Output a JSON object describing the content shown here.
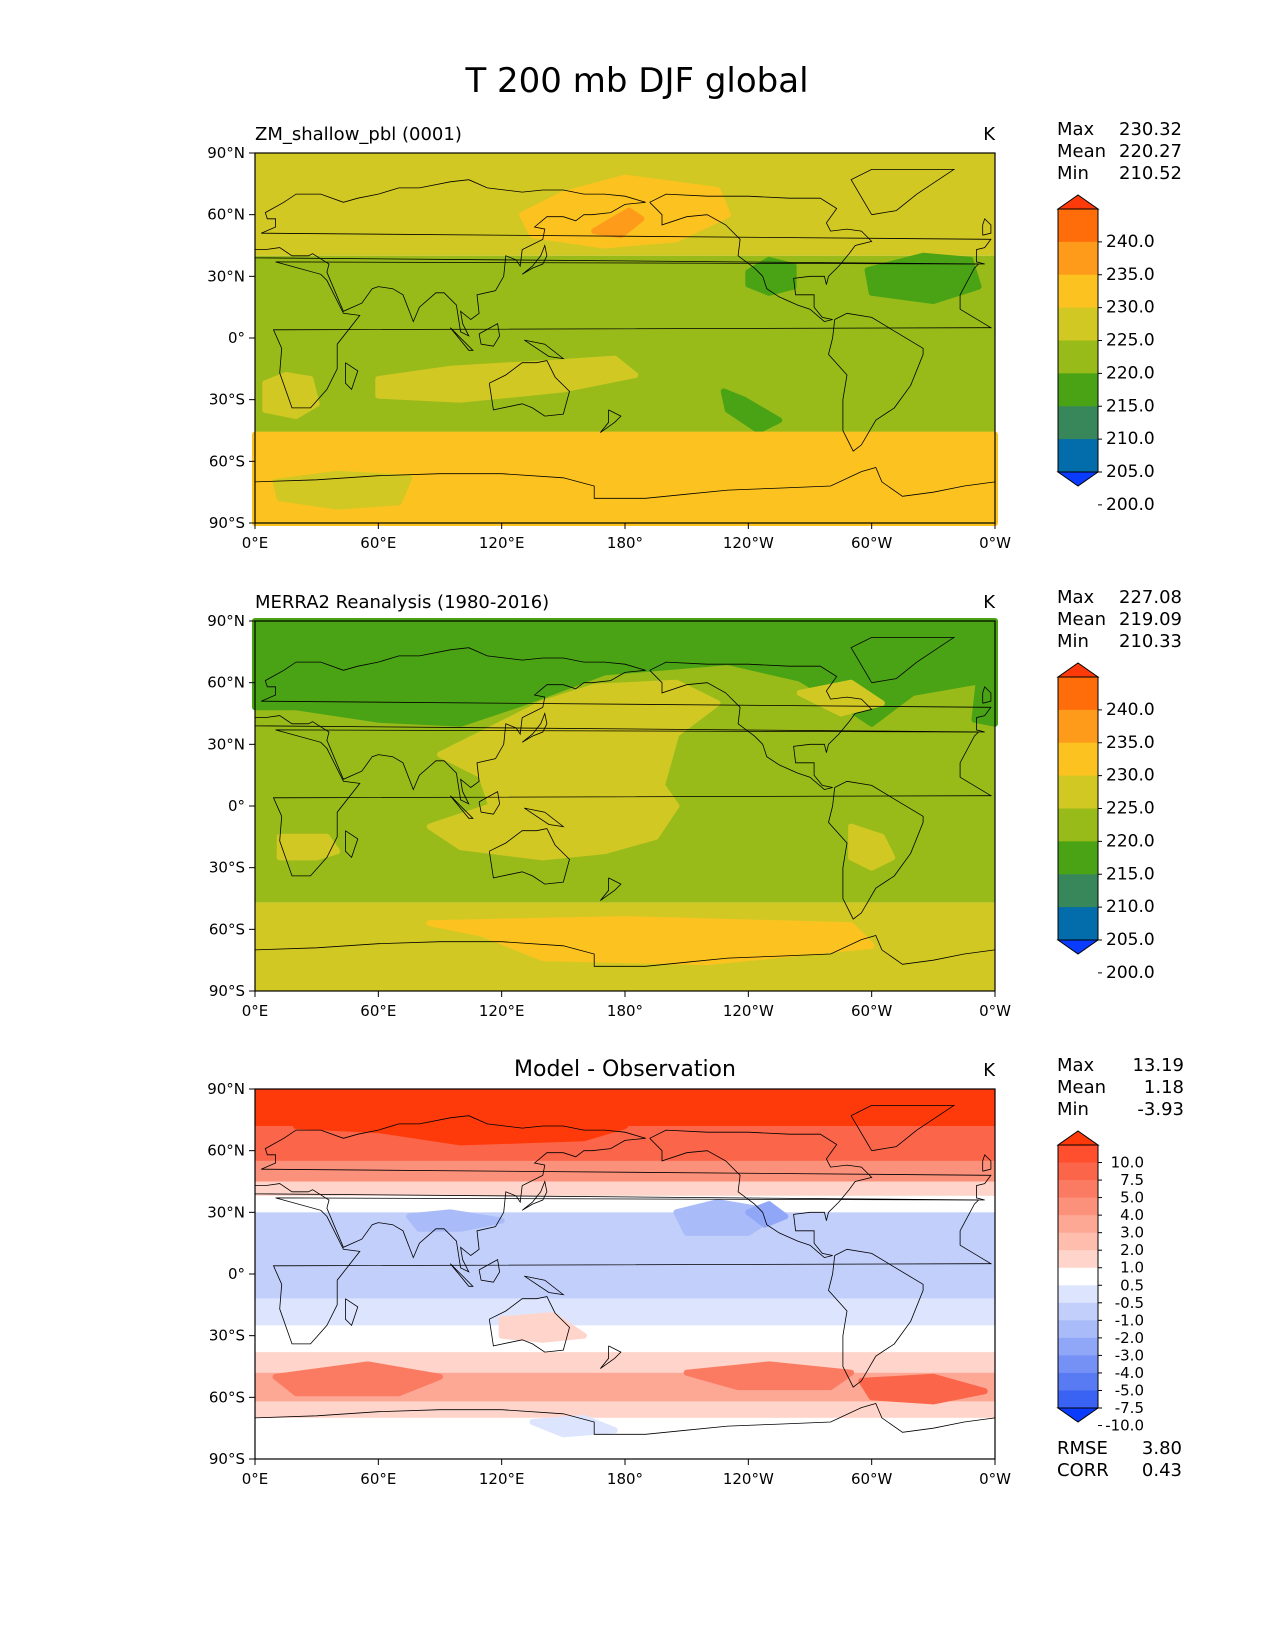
{
  "figure": {
    "title": "T 200 mb DJF global"
  },
  "chart_data": [
    {
      "type": "heatmap",
      "title": "ZM_shallow_pbl (0001)",
      "units": "K",
      "stats": [
        {
          "label": "Max",
          "value": "230.32"
        },
        {
          "label": "Mean",
          "value": "220.27"
        },
        {
          "label": "Min",
          "value": "210.52"
        }
      ],
      "xticks": [
        "0°E",
        "60°E",
        "120°E",
        "180°",
        "120°W",
        "60°W",
        "0°W"
      ],
      "yticks": [
        "90°N",
        "60°N",
        "30°N",
        "0°",
        "30°S",
        "60°S",
        "90°S"
      ],
      "xlim": [
        0,
        360
      ],
      "ylim": [
        -90,
        90
      ],
      "colorbar": {
        "labels": [
          "240.0",
          "235.0",
          "230.0",
          "225.0",
          "220.0",
          "215.0",
          "210.0",
          "205.0",
          "200.0"
        ],
        "colors": [
          "#ff3a0a",
          "#ff6d0a",
          "#ff9b1a",
          "#fcc320",
          "#d2c823",
          "#98bb1a",
          "#4aa315",
          "#37875a",
          "#036cab",
          "#0a3cff"
        ]
      },
      "regions": [
        {
          "color": "#fcc320",
          "points": [
            [
              150,
              70
            ],
            [
              180,
              78
            ],
            [
              225,
              72
            ],
            [
              230,
              60
            ],
            [
              205,
              48
            ],
            [
              170,
              45
            ],
            [
              135,
              50
            ],
            [
              130,
              60
            ]
          ]
        },
        {
          "color": "#ff9b1a",
          "points": [
            [
              165,
              52
            ],
            [
              175,
              58
            ],
            [
              182,
              62
            ],
            [
              188,
              58
            ],
            [
              178,
              50
            ]
          ]
        },
        {
          "color": "#4aa315",
          "points": [
            [
              240,
              32
            ],
            [
              250,
              38
            ],
            [
              262,
              35
            ],
            [
              262,
              25
            ],
            [
              250,
              22
            ],
            [
              240,
              26
            ]
          ]
        },
        {
          "color": "#4aa315",
          "points": [
            [
              298,
              33
            ],
            [
              325,
              40
            ],
            [
              348,
              38
            ],
            [
              352,
              25
            ],
            [
              330,
              18
            ],
            [
              300,
              22
            ]
          ]
        },
        {
          "color": "#4aa315",
          "points": [
            [
              228,
              -26
            ],
            [
              238,
              -30
            ],
            [
              255,
              -40
            ],
            [
              245,
              -45
            ],
            [
              230,
              -35
            ]
          ]
        },
        {
          "color": "#d2c823",
          "points": [
            [
              60,
              -20
            ],
            [
              95,
              -15
            ],
            [
              145,
              -12
            ],
            [
              175,
              -10
            ],
            [
              185,
              -18
            ],
            [
              150,
              -25
            ],
            [
              100,
              -30
            ],
            [
              60,
              -28
            ]
          ]
        },
        {
          "color": "#d2c823",
          "points": [
            [
              5,
              -22
            ],
            [
              15,
              -18
            ],
            [
              27,
              -20
            ],
            [
              30,
              -32
            ],
            [
              20,
              -38
            ],
            [
              5,
              -35
            ]
          ]
        },
        {
          "color": "#fcc320",
          "points": [
            [
              0,
              -47
            ],
            [
              360,
              -47
            ],
            [
              360,
              -90
            ],
            [
              0,
              -90
            ]
          ]
        },
        {
          "color": "#d2c823",
          "points": [
            [
              10,
              -70
            ],
            [
              40,
              -66
            ],
            [
              75,
              -68
            ],
            [
              70,
              -80
            ],
            [
              40,
              -82
            ],
            [
              12,
              -78
            ]
          ]
        }
      ],
      "base_bands": [
        {
          "from": 90,
          "to": 40,
          "color": "#d2c823"
        },
        {
          "from": 40,
          "to": -90,
          "color": "#98bb1a"
        }
      ]
    },
    {
      "type": "heatmap",
      "title": "MERRA2 Reanalysis (1980-2016)",
      "units": "K",
      "stats": [
        {
          "label": "Max",
          "value": "227.08"
        },
        {
          "label": "Mean",
          "value": "219.09"
        },
        {
          "label": "Min",
          "value": "210.33"
        }
      ],
      "xticks": [
        "0°E",
        "60°E",
        "120°E",
        "180°",
        "120°W",
        "60°W",
        "0°W"
      ],
      "yticks": [
        "90°N",
        "60°N",
        "30°N",
        "0°",
        "30°S",
        "60°S",
        "90°S"
      ],
      "xlim": [
        0,
        360
      ],
      "ylim": [
        -90,
        90
      ],
      "colorbar": {
        "labels": [
          "240.0",
          "235.0",
          "230.0",
          "225.0",
          "220.0",
          "215.0",
          "210.0",
          "205.0",
          "200.0"
        ],
        "colors": [
          "#ff3a0a",
          "#ff6d0a",
          "#ff9b1a",
          "#fcc320",
          "#d2c823",
          "#98bb1a",
          "#4aa315",
          "#37875a",
          "#036cab",
          "#0a3cff"
        ]
      },
      "base_bands": [
        {
          "from": 90,
          "to": -47,
          "color": "#98bb1a"
        },
        {
          "from": -47,
          "to": -90,
          "color": "#d2c823"
        }
      ],
      "regions": [
        {
          "color": "#4aa315",
          "points": [
            [
              0,
              90
            ],
            [
              360,
              90
            ],
            [
              360,
              62
            ],
            [
              320,
              55
            ],
            [
              300,
              40
            ],
            [
              285,
              50
            ],
            [
              265,
              62
            ],
            [
              230,
              70
            ],
            [
              170,
              65
            ],
            [
              130,
              50
            ],
            [
              100,
              40
            ],
            [
              60,
              42
            ],
            [
              20,
              48
            ],
            [
              0,
              48
            ]
          ]
        },
        {
          "color": "#4aa315",
          "points": [
            [
              352,
              60
            ],
            [
              360,
              62
            ],
            [
              360,
              40
            ],
            [
              350,
              42
            ]
          ]
        },
        {
          "color": "#d2c823",
          "points": [
            [
              140,
              50
            ],
            [
              165,
              58
            ],
            [
              205,
              60
            ],
            [
              225,
              50
            ],
            [
              205,
              35
            ],
            [
              198,
              10
            ],
            [
              205,
              0
            ],
            [
              195,
              -15
            ],
            [
              170,
              -22
            ],
            [
              140,
              -25
            ],
            [
              100,
              -20
            ],
            [
              85,
              -10
            ],
            [
              115,
              0
            ],
            [
              110,
              15
            ],
            [
              90,
              25
            ],
            [
              110,
              35
            ]
          ]
        },
        {
          "color": "#d2c823",
          "points": [
            [
              265,
              55
            ],
            [
              290,
              60
            ],
            [
              305,
              50
            ],
            [
              285,
              45
            ]
          ]
        },
        {
          "color": "#d2c823",
          "points": [
            [
              290,
              -10
            ],
            [
              305,
              -15
            ],
            [
              310,
              -25
            ],
            [
              300,
              -30
            ],
            [
              290,
              -25
            ]
          ]
        },
        {
          "color": "#d2c823",
          "points": [
            [
              12,
              -15
            ],
            [
              35,
              -15
            ],
            [
              40,
              -22
            ],
            [
              30,
              -25
            ],
            [
              12,
              -25
            ]
          ]
        },
        {
          "color": "#fcc320",
          "points": [
            [
              85,
              -57
            ],
            [
              180,
              -55
            ],
            [
              290,
              -58
            ],
            [
              300,
              -68
            ],
            [
              220,
              -76
            ],
            [
              140,
              -74
            ],
            [
              110,
              -62
            ]
          ]
        }
      ]
    },
    {
      "type": "heatmap",
      "title": "Model - Observation",
      "units": "K",
      "stats": [
        {
          "label": "Max",
          "value": "13.19"
        },
        {
          "label": "Mean",
          "value": "1.18"
        },
        {
          "label": "Min",
          "value": "-3.93"
        }
      ],
      "extra_stats": [
        {
          "label": "RMSE",
          "value": "3.80"
        },
        {
          "label": "CORR",
          "value": "0.43"
        }
      ],
      "xticks": [
        "0°E",
        "60°E",
        "120°E",
        "180°",
        "120°W",
        "60°W",
        "0°W"
      ],
      "yticks": [
        "90°N",
        "60°N",
        "30°N",
        "0°",
        "30°S",
        "60°S",
        "90°S"
      ],
      "xlim": [
        0,
        360
      ],
      "ylim": [
        -90,
        90
      ],
      "colorbar": {
        "labels": [
          "10.0",
          "7.5",
          "5.0",
          "4.0",
          "3.0",
          "2.0",
          "1.0",
          "0.5",
          "-0.5",
          "-1.0",
          "-2.0",
          "-3.0",
          "-4.0",
          "-5.0",
          "-7.5",
          "-10.0"
        ],
        "colors": [
          "#ff3a0a",
          "#ff4f2f",
          "#fb6549",
          "#fb7b62",
          "#fc917b",
          "#fda795",
          "#ffbdad",
          "#ffd5cb",
          "#ffffff",
          "#dde4fd",
          "#c2cffb",
          "#a9bbf8",
          "#90a6f6",
          "#7591f5",
          "#587bf3",
          "#3a63f3",
          "#0a3cff"
        ]
      },
      "base_bands": [
        {
          "from": 90,
          "to": 72,
          "color": "#ff3a0a"
        },
        {
          "from": 72,
          "to": 55,
          "color": "#fb6549"
        },
        {
          "from": 55,
          "to": 45,
          "color": "#fc917b"
        },
        {
          "from": 45,
          "to": 38,
          "color": "#ffd5cb"
        },
        {
          "from": 38,
          "to": 30,
          "color": "#ffffff"
        },
        {
          "from": 30,
          "to": -12,
          "color": "#c2cffb"
        },
        {
          "from": -12,
          "to": -25,
          "color": "#dde4fd"
        },
        {
          "from": -25,
          "to": -38,
          "color": "#ffffff"
        },
        {
          "from": -38,
          "to": -48,
          "color": "#ffd5cb"
        },
        {
          "from": -48,
          "to": -62,
          "color": "#fda795"
        },
        {
          "from": -62,
          "to": -70,
          "color": "#ffd5cb"
        },
        {
          "from": -70,
          "to": -90,
          "color": "#ffffff"
        }
      ],
      "regions": [
        {
          "color": "#ff3a0a",
          "points": [
            [
              20,
              72
            ],
            [
              60,
              70
            ],
            [
              100,
              64
            ],
            [
              160,
              66
            ],
            [
              180,
              72
            ],
            [
              120,
              74
            ],
            [
              60,
              74
            ]
          ]
        },
        {
          "color": "#a9bbf8",
          "points": [
            [
              205,
              30
            ],
            [
              225,
              35
            ],
            [
              255,
              30
            ],
            [
              240,
              20
            ],
            [
              210,
              20
            ]
          ]
        },
        {
          "color": "#a9bbf8",
          "points": [
            [
              75,
              28
            ],
            [
              95,
              30
            ],
            [
              120,
              26
            ],
            [
              100,
              22
            ],
            [
              80,
              22
            ]
          ]
        },
        {
          "color": "#90a6f6",
          "points": [
            [
              240,
              30
            ],
            [
              250,
              34
            ],
            [
              258,
              28
            ],
            [
              248,
              24
            ]
          ]
        },
        {
          "color": "#ffd5cb",
          "points": [
            [
              120,
              -22
            ],
            [
              145,
              -20
            ],
            [
              160,
              -30
            ],
            [
              140,
              -32
            ],
            [
              120,
              -30
            ]
          ]
        },
        {
          "color": "#fb7b62",
          "points": [
            [
              10,
              -50
            ],
            [
              55,
              -44
            ],
            [
              90,
              -50
            ],
            [
              70,
              -58
            ],
            [
              20,
              -58
            ]
          ]
        },
        {
          "color": "#fb7b62",
          "points": [
            [
              210,
              -48
            ],
            [
              250,
              -44
            ],
            [
              290,
              -48
            ],
            [
              280,
              -55
            ],
            [
              235,
              -55
            ]
          ]
        },
        {
          "color": "#fb6549",
          "points": [
            [
              295,
              -52
            ],
            [
              330,
              -50
            ],
            [
              355,
              -57
            ],
            [
              330,
              -62
            ],
            [
              300,
              -60
            ]
          ]
        },
        {
          "color": "#dde4fd",
          "points": [
            [
              135,
              -72
            ],
            [
              160,
              -70
            ],
            [
              175,
              -76
            ],
            [
              150,
              -78
            ]
          ]
        }
      ]
    }
  ]
}
